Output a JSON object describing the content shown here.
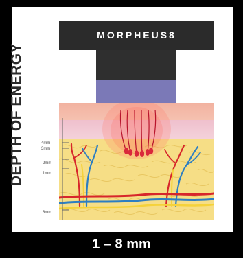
{
  "brand": "MORPHEUS8",
  "side_label": "DEPTH OF ENERGY",
  "bottom_label": "1 – 8 mm",
  "depth_marks": [
    "4mm",
    "3mm",
    "2mm",
    "1mm",
    "8mm"
  ],
  "colors": {
    "background": "#000000",
    "device": "#2b2b2b",
    "tip": "#7b79b7",
    "epidermis": "#f3b9a6",
    "dermis": "#f1c9d0",
    "fat": "#f5dc83",
    "artery": "#d7262b",
    "vein": "#2d7ec2",
    "nerve": "#f5d23a"
  }
}
